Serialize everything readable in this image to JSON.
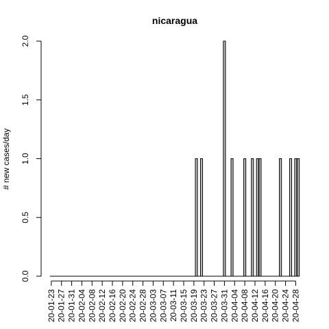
{
  "chart_data": {
    "type": "bar",
    "title": "nicaragua",
    "ylabel": "# new cases/day",
    "xlabel": "",
    "ylim": [
      0,
      2
    ],
    "y_ticks": [
      "0.0",
      "0.5",
      "1.0",
      "1.5",
      "2.0"
    ],
    "x_tick_labels": [
      "20-01-23",
      "20-01-27",
      "20-01-31",
      "20-02-04",
      "20-02-08",
      "20-02-12",
      "20-02-16",
      "20-02-20",
      "20-02-24",
      "20-02-28",
      "20-03-03",
      "20-03-07",
      "20-03-11",
      "20-03-15",
      "20-03-19",
      "20-03-23",
      "20-03-27",
      "20-03-31",
      "20-04-04",
      "20-04-08",
      "20-04-12",
      "20-04-16",
      "20-04-20",
      "20-04-24",
      "20-04-28"
    ],
    "start_date": "2020-01-23",
    "values": [
      0,
      0,
      0,
      0,
      0,
      0,
      0,
      0,
      0,
      0,
      0,
      0,
      0,
      0,
      0,
      0,
      0,
      0,
      0,
      0,
      0,
      0,
      0,
      0,
      0,
      0,
      0,
      0,
      0,
      0,
      0,
      0,
      0,
      0,
      0,
      0,
      0,
      0,
      0,
      0,
      0,
      0,
      0,
      0,
      0,
      0,
      0,
      0,
      0,
      0,
      0,
      0,
      0,
      0,
      0,
      0,
      0,
      1,
      0,
      1,
      0,
      0,
      0,
      0,
      0,
      0,
      0,
      0,
      2,
      0,
      0,
      1,
      0,
      0,
      0,
      0,
      1,
      0,
      0,
      1,
      0,
      1,
      1,
      0,
      0,
      0,
      0,
      0,
      0,
      0,
      1,
      0,
      0,
      0,
      1,
      0,
      1,
      1
    ],
    "colors": {
      "bar_fill": "#bebebe",
      "bar_stroke": "#000000",
      "axis": "#000000"
    },
    "grid": false
  }
}
